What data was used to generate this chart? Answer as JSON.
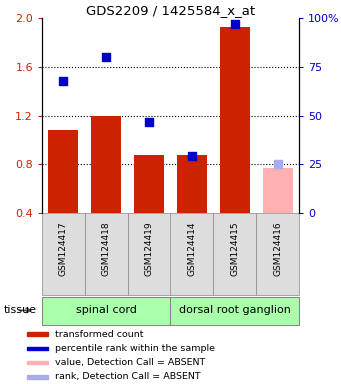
{
  "title": "GDS2209 / 1425584_x_at",
  "samples": [
    "GSM124417",
    "GSM124418",
    "GSM124419",
    "GSM124414",
    "GSM124415",
    "GSM124416"
  ],
  "bar_values": [
    1.08,
    1.2,
    0.88,
    0.88,
    1.93,
    0.77
  ],
  "bar_colors": [
    "#cc2200",
    "#cc2200",
    "#cc2200",
    "#cc2200",
    "#cc2200",
    "#ffb0b0"
  ],
  "dot_values": [
    1.48,
    1.68,
    1.15,
    0.87,
    1.95,
    0.8
  ],
  "dot_colors": [
    "#0000cc",
    "#0000cc",
    "#0000cc",
    "#0000cc",
    "#0000cc",
    "#aaaaee"
  ],
  "ylim_left": [
    0.4,
    2.0
  ],
  "yticks_left": [
    0.4,
    0.8,
    1.2,
    1.6,
    2.0
  ],
  "ylim_right": [
    0,
    100
  ],
  "yticks_right": [
    0,
    25,
    50,
    75,
    100
  ],
  "ytick_labels_right": [
    "0",
    "25",
    "50",
    "75",
    "100%"
  ],
  "bar_bottom": 0.4,
  "tissue_groups": [
    {
      "label": "spinal cord",
      "start": 0,
      "end": 3
    },
    {
      "label": "dorsal root ganglion",
      "start": 3,
      "end": 6
    }
  ],
  "tissue_color": "#aaffaa",
  "tissue_label": "tissue",
  "legend_items": [
    {
      "label": "transformed count",
      "color": "#cc2200"
    },
    {
      "label": "percentile rank within the sample",
      "color": "#0000cc"
    },
    {
      "label": "value, Detection Call = ABSENT",
      "color": "#ffb0b0"
    },
    {
      "label": "rank, Detection Call = ABSENT",
      "color": "#aaaaee"
    }
  ],
  "bar_width": 0.7,
  "dot_size": 28,
  "left_color": "#cc2200",
  "right_color": "#0000cc"
}
